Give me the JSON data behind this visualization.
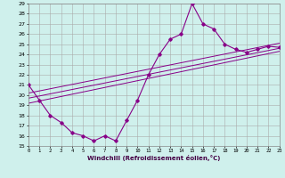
{
  "xlabel": "Windchill (Refroidissement éolien,°C)",
  "bg_color": "#cff0ec",
  "grid_color": "#aaaaaa",
  "line_color": "#880088",
  "ylim": [
    15,
    29
  ],
  "xlim": [
    0,
    23
  ],
  "yticks": [
    15,
    16,
    17,
    18,
    19,
    20,
    21,
    22,
    23,
    24,
    25,
    26,
    27,
    28,
    29
  ],
  "xticks": [
    0,
    1,
    2,
    3,
    4,
    5,
    6,
    7,
    8,
    9,
    10,
    11,
    12,
    13,
    14,
    15,
    16,
    17,
    18,
    19,
    20,
    21,
    22,
    23
  ],
  "series1_x": [
    0,
    1,
    2,
    3,
    4,
    5,
    6,
    7,
    8,
    9,
    10,
    11,
    12,
    13,
    14,
    15,
    16,
    17,
    18,
    19,
    20,
    21,
    22,
    23
  ],
  "series1_y": [
    21,
    19.5,
    18,
    17.3,
    16.3,
    16,
    15.5,
    16,
    15.5,
    17.5,
    19.5,
    22,
    24,
    25.5,
    26,
    29,
    27,
    26.5,
    25,
    24.5,
    24.2,
    24.5,
    24.8,
    24.7
  ],
  "series2_x": [
    0,
    23
  ],
  "series2_y": [
    19.2,
    24.3
  ],
  "series3_x": [
    0,
    23
  ],
  "series3_y": [
    19.7,
    24.6
  ],
  "series4_x": [
    0,
    23
  ],
  "series4_y": [
    20.2,
    25.1
  ]
}
